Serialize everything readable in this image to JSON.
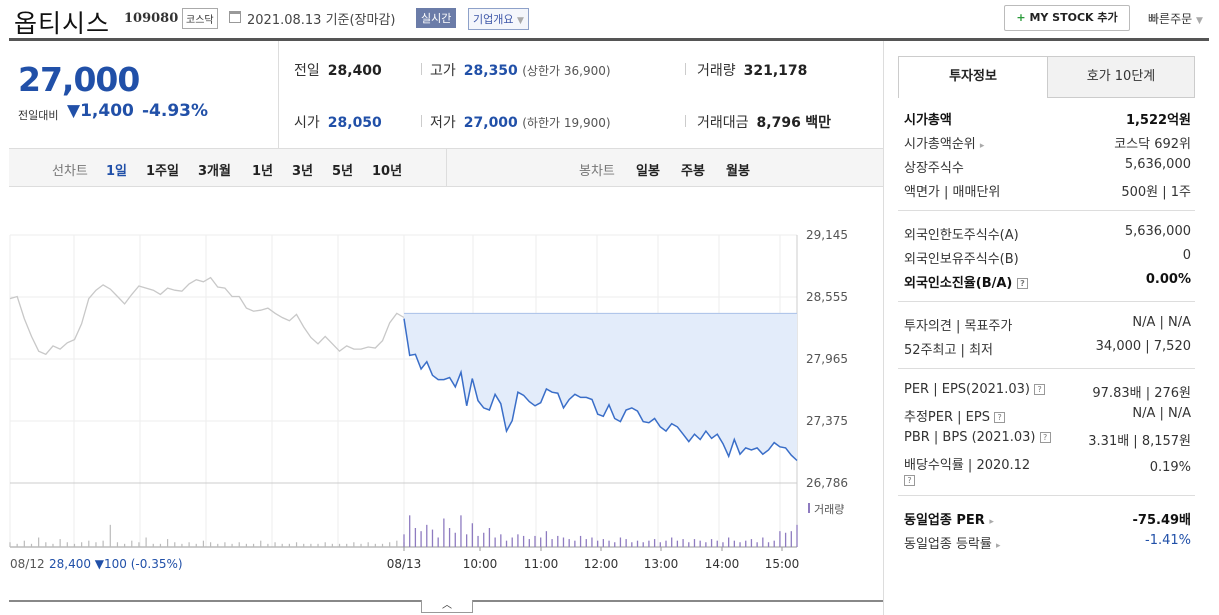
{
  "header": {
    "name": "옵티시스",
    "code": "109080",
    "market": "코스닥",
    "date": "2021.08.13 기준(장마감)",
    "realtime": "실시간",
    "company": "기업개요",
    "mystock_plus": "+",
    "mystock": "MY STOCK 추가",
    "fastorder": "빠른주문"
  },
  "price": {
    "current": "27,000",
    "diff_label": "전일대비",
    "diff": "▼1,400",
    "rate": "-4.93%"
  },
  "stats": {
    "prev_label": "전일",
    "prev": "28,400",
    "high_label": "고가",
    "high": "28,350",
    "upper": "(상한가 36,900)",
    "vol_label": "거래량",
    "vol": "321,178",
    "open_label": "시가",
    "open": "28,050",
    "low_label": "저가",
    "low": "27,000",
    "lower": "(하한가 19,900)",
    "amt_label": "거래대금",
    "amt": "8,796",
    "amt_unit": "백만"
  },
  "tabs": {
    "line_label": "선차트",
    "line": [
      "1일",
      "1주일",
      "3개월",
      "1년",
      "3년",
      "5년",
      "10년"
    ],
    "candle_label": "봉차트",
    "candle": [
      "일봉",
      "주봉",
      "월봉"
    ]
  },
  "chart_data": {
    "type": "line",
    "ylim": [
      26786,
      29145
    ],
    "y_ticks": [
      "29,145",
      "28,555",
      "27,965",
      "27,375",
      "26,786"
    ],
    "prev_close": 28400,
    "prev_day_series": [
      28540,
      28560,
      28350,
      28180,
      28040,
      28010,
      28090,
      28060,
      28120,
      28150,
      28300,
      28540,
      28620,
      28670,
      28630,
      28560,
      28490,
      28580,
      28660,
      28640,
      28620,
      28580,
      28640,
      28620,
      28610,
      28680,
      28720,
      28700,
      28740,
      28650,
      28640,
      28560,
      28560,
      28450,
      28420,
      28430,
      28450,
      28400,
      28360,
      28330,
      28390,
      28270,
      28170,
      28110,
      28180,
      28110,
      28040,
      28090,
      28060,
      28060,
      28080,
      28070,
      28140,
      28310,
      28400,
      28360
    ],
    "today_series": [
      28350,
      28000,
      28010,
      27870,
      27940,
      27810,
      27770,
      27770,
      27790,
      27700,
      27840,
      27520,
      27780,
      27570,
      27500,
      27480,
      27630,
      27540,
      27280,
      27380,
      27650,
      27620,
      27560,
      27520,
      27550,
      27680,
      27650,
      27640,
      27500,
      27580,
      27630,
      27600,
      27600,
      27580,
      27440,
      27420,
      27530,
      27400,
      27370,
      27480,
      27500,
      27470,
      27370,
      27360,
      27400,
      27320,
      27280,
      27350,
      27320,
      27250,
      27180,
      27250,
      27200,
      27280,
      27210,
      27250,
      27160,
      27040,
      27200,
      27060,
      27120,
      27100,
      27120,
      27060,
      27100,
      27170,
      27130,
      27120,
      27050,
      27000
    ],
    "volume_label": "거래량",
    "prev_vol": [
      3,
      2,
      4,
      2,
      6,
      3,
      2,
      5,
      3,
      2,
      3,
      4,
      3,
      4,
      14,
      3,
      2,
      4,
      3,
      6,
      2,
      2,
      5,
      3,
      2,
      3,
      2,
      4,
      3,
      2,
      3,
      2,
      3,
      2,
      2,
      4,
      2,
      3,
      2,
      2,
      3,
      2,
      2,
      2,
      3,
      2,
      2,
      2,
      3,
      2,
      3,
      2,
      2,
      3,
      4,
      3
    ],
    "today_vol": [
      8,
      20,
      12,
      10,
      14,
      11,
      6,
      18,
      12,
      9,
      20,
      8,
      15,
      7,
      9,
      12,
      6,
      8,
      4,
      6,
      8,
      7,
      5,
      7,
      6,
      10,
      5,
      7,
      6,
      5,
      4,
      7,
      5,
      6,
      4,
      5,
      4,
      3,
      6,
      5,
      3,
      4,
      3,
      4,
      5,
      3,
      4,
      6,
      4,
      5,
      3,
      5,
      4,
      3,
      5,
      4,
      3,
      6,
      4,
      3,
      4,
      5,
      3,
      6,
      3,
      4,
      10,
      9,
      10,
      14
    ],
    "x_left": "08/12",
    "x_left_price": "28,400",
    "x_left_diff": "▼100 (-0.35%)",
    "x_ticks": [
      "08/13",
      "10:00",
      "11:00",
      "12:00",
      "13:00",
      "14:00",
      "15:00"
    ],
    "colors": {
      "prev": "#c8c8c8",
      "today": "#3a6ec8",
      "fill": "#e3ecfa"
    }
  },
  "right": {
    "tab1": "투자정보",
    "tab2": "호가 10단계",
    "market_cap_label": "시가총액",
    "market_cap": "1,522억원",
    "rank_label": "시가총액순위",
    "rank": "코스닥 692위",
    "shares_label": "상장주식수",
    "shares": "5,636,000",
    "par_label": "액면가 | 매매단위",
    "par": "500원 | 1주",
    "foreign_limit_label": "외국인한도주식수(A)",
    "foreign_limit": "5,636,000",
    "foreign_hold_label": "외국인보유주식수(B)",
    "foreign_hold": "0",
    "foreign_rate_label": "외국인소진율(B/A)",
    "foreign_rate": "0.00%",
    "opinion_label": "투자의견 | 목표주가",
    "opinion": "N/A | N/A",
    "w52_label": "52주최고 | 최저",
    "w52": "34,000 | 7,520",
    "per_label": "PER | EPS(2021.03)",
    "per": "97.83배 | 276원",
    "est_label": "추정PER | EPS",
    "est": "N/A | N/A",
    "pbr_label": "PBR | BPS (2021.03)",
    "pbr": "3.31배 | 8,157원",
    "div_label": "배당수익률 | 2020.12",
    "div": "0.19%",
    "ind_per_label": "동일업종 PER",
    "ind_per": "-75.49배",
    "ind_rate_label": "동일업종 등락률",
    "ind_rate": "-1.41%"
  }
}
